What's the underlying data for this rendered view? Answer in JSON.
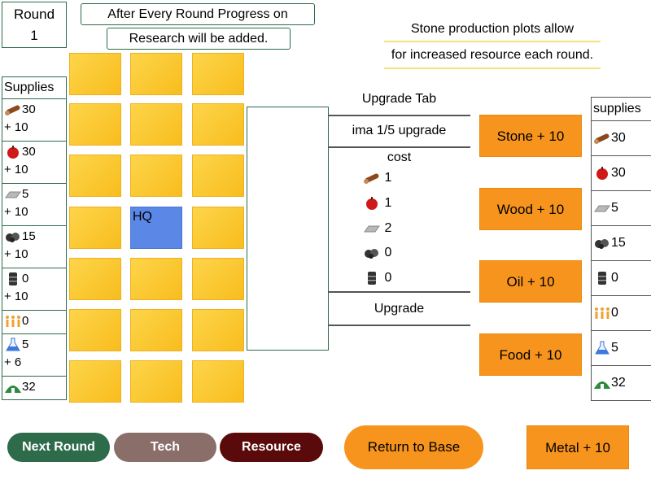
{
  "round": {
    "label": "Round",
    "number": "1"
  },
  "notes": {
    "line1": "After Every Round Progress on",
    "line2": "Research will be added."
  },
  "info": {
    "line1": "Stone production plots allow",
    "line2": "for increased resource each round."
  },
  "supplies_left": {
    "header": "Supplies",
    "rows": [
      {
        "icon": "wood-log-icon",
        "value": "30",
        "rate": "+ 10"
      },
      {
        "icon": "apple-icon",
        "value": "30",
        "rate": "+ 10"
      },
      {
        "icon": "metal-bar-icon",
        "value": "5",
        "rate": "+ 10"
      },
      {
        "icon": "stone-icon",
        "value": "15",
        "rate": "+ 10"
      },
      {
        "icon": "oil-barrel-icon",
        "value": "0",
        "rate": "+ 10"
      },
      {
        "icon": "people-icon",
        "value": "0",
        "rate": ""
      },
      {
        "icon": "flask-icon",
        "value": "5",
        "rate": "+ 6"
      },
      {
        "icon": "hut-icon",
        "value": "32",
        "rate": ""
      }
    ]
  },
  "grid": {
    "hq_label": "HQ"
  },
  "upgrade": {
    "tab_label": "Upgrade Tab",
    "name": "ima 1/5 upgrade",
    "cost_label": "cost",
    "costs": [
      {
        "icon": "wood-log-icon",
        "value": "1"
      },
      {
        "icon": "apple-icon",
        "value": "1"
      },
      {
        "icon": "metal-bar-icon",
        "value": "2"
      },
      {
        "icon": "stone-icon",
        "value": "0"
      },
      {
        "icon": "oil-barrel-icon",
        "value": "0"
      }
    ],
    "button_label": "Upgrade"
  },
  "resource_buttons": {
    "stone": "Stone + 10",
    "wood": "Wood + 10",
    "oil": "Oil + 10",
    "food": "Food + 10",
    "metal": "Metal + 10"
  },
  "supplies_right": {
    "header": "supplies",
    "rows": [
      {
        "icon": "wood-log-icon",
        "value": "30"
      },
      {
        "icon": "apple-icon",
        "value": "30"
      },
      {
        "icon": "metal-bar-icon",
        "value": "5"
      },
      {
        "icon": "stone-icon",
        "value": "15"
      },
      {
        "icon": "oil-barrel-icon",
        "value": "0"
      },
      {
        "icon": "people-icon",
        "value": "0"
      },
      {
        "icon": "flask-icon",
        "value": "5"
      },
      {
        "icon": "hut-icon",
        "value": "32"
      }
    ]
  },
  "nav": {
    "next_round": "Next Round",
    "tech": "Tech",
    "resource": "Resource",
    "return_to_base": "Return to Base"
  },
  "colors": {
    "tile": "#fbc830",
    "hq": "#5b87e6",
    "orange_button": "#f7941d",
    "next_round": "#2e6b4a",
    "tech": "#8a6e6a",
    "resource": "#5a0a0a"
  }
}
